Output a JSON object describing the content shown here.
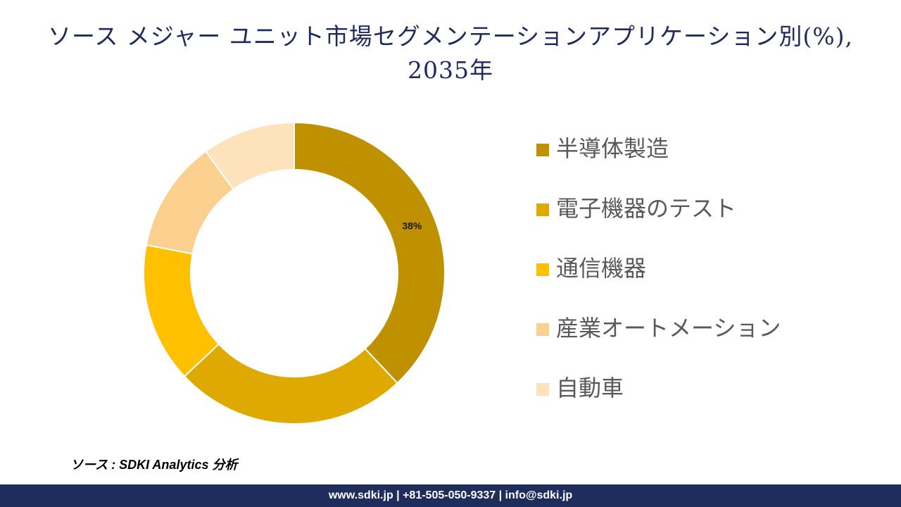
{
  "chart_data": {
    "type": "donut",
    "title": "ソース メジャー ユニット市場セグメンテーションアプリケーション別(%), 2035年",
    "categories": [
      "半導体製造",
      "電子機器のテスト",
      "通信機器",
      "産業オートメーション",
      "自動車"
    ],
    "values": [
      38,
      25,
      15,
      12,
      10
    ],
    "value_labels": [
      "38%",
      null,
      null,
      null,
      null
    ],
    "colors": [
      "#bf9000",
      "#dea900",
      "#ffc000",
      "#fbd08e",
      "#fde2bb"
    ],
    "legend": "right"
  },
  "source": "ソース : SDKI Analytics 分析",
  "footer": "www.sdki.jp | +81-505-050-9337 | info@sdki.jp"
}
